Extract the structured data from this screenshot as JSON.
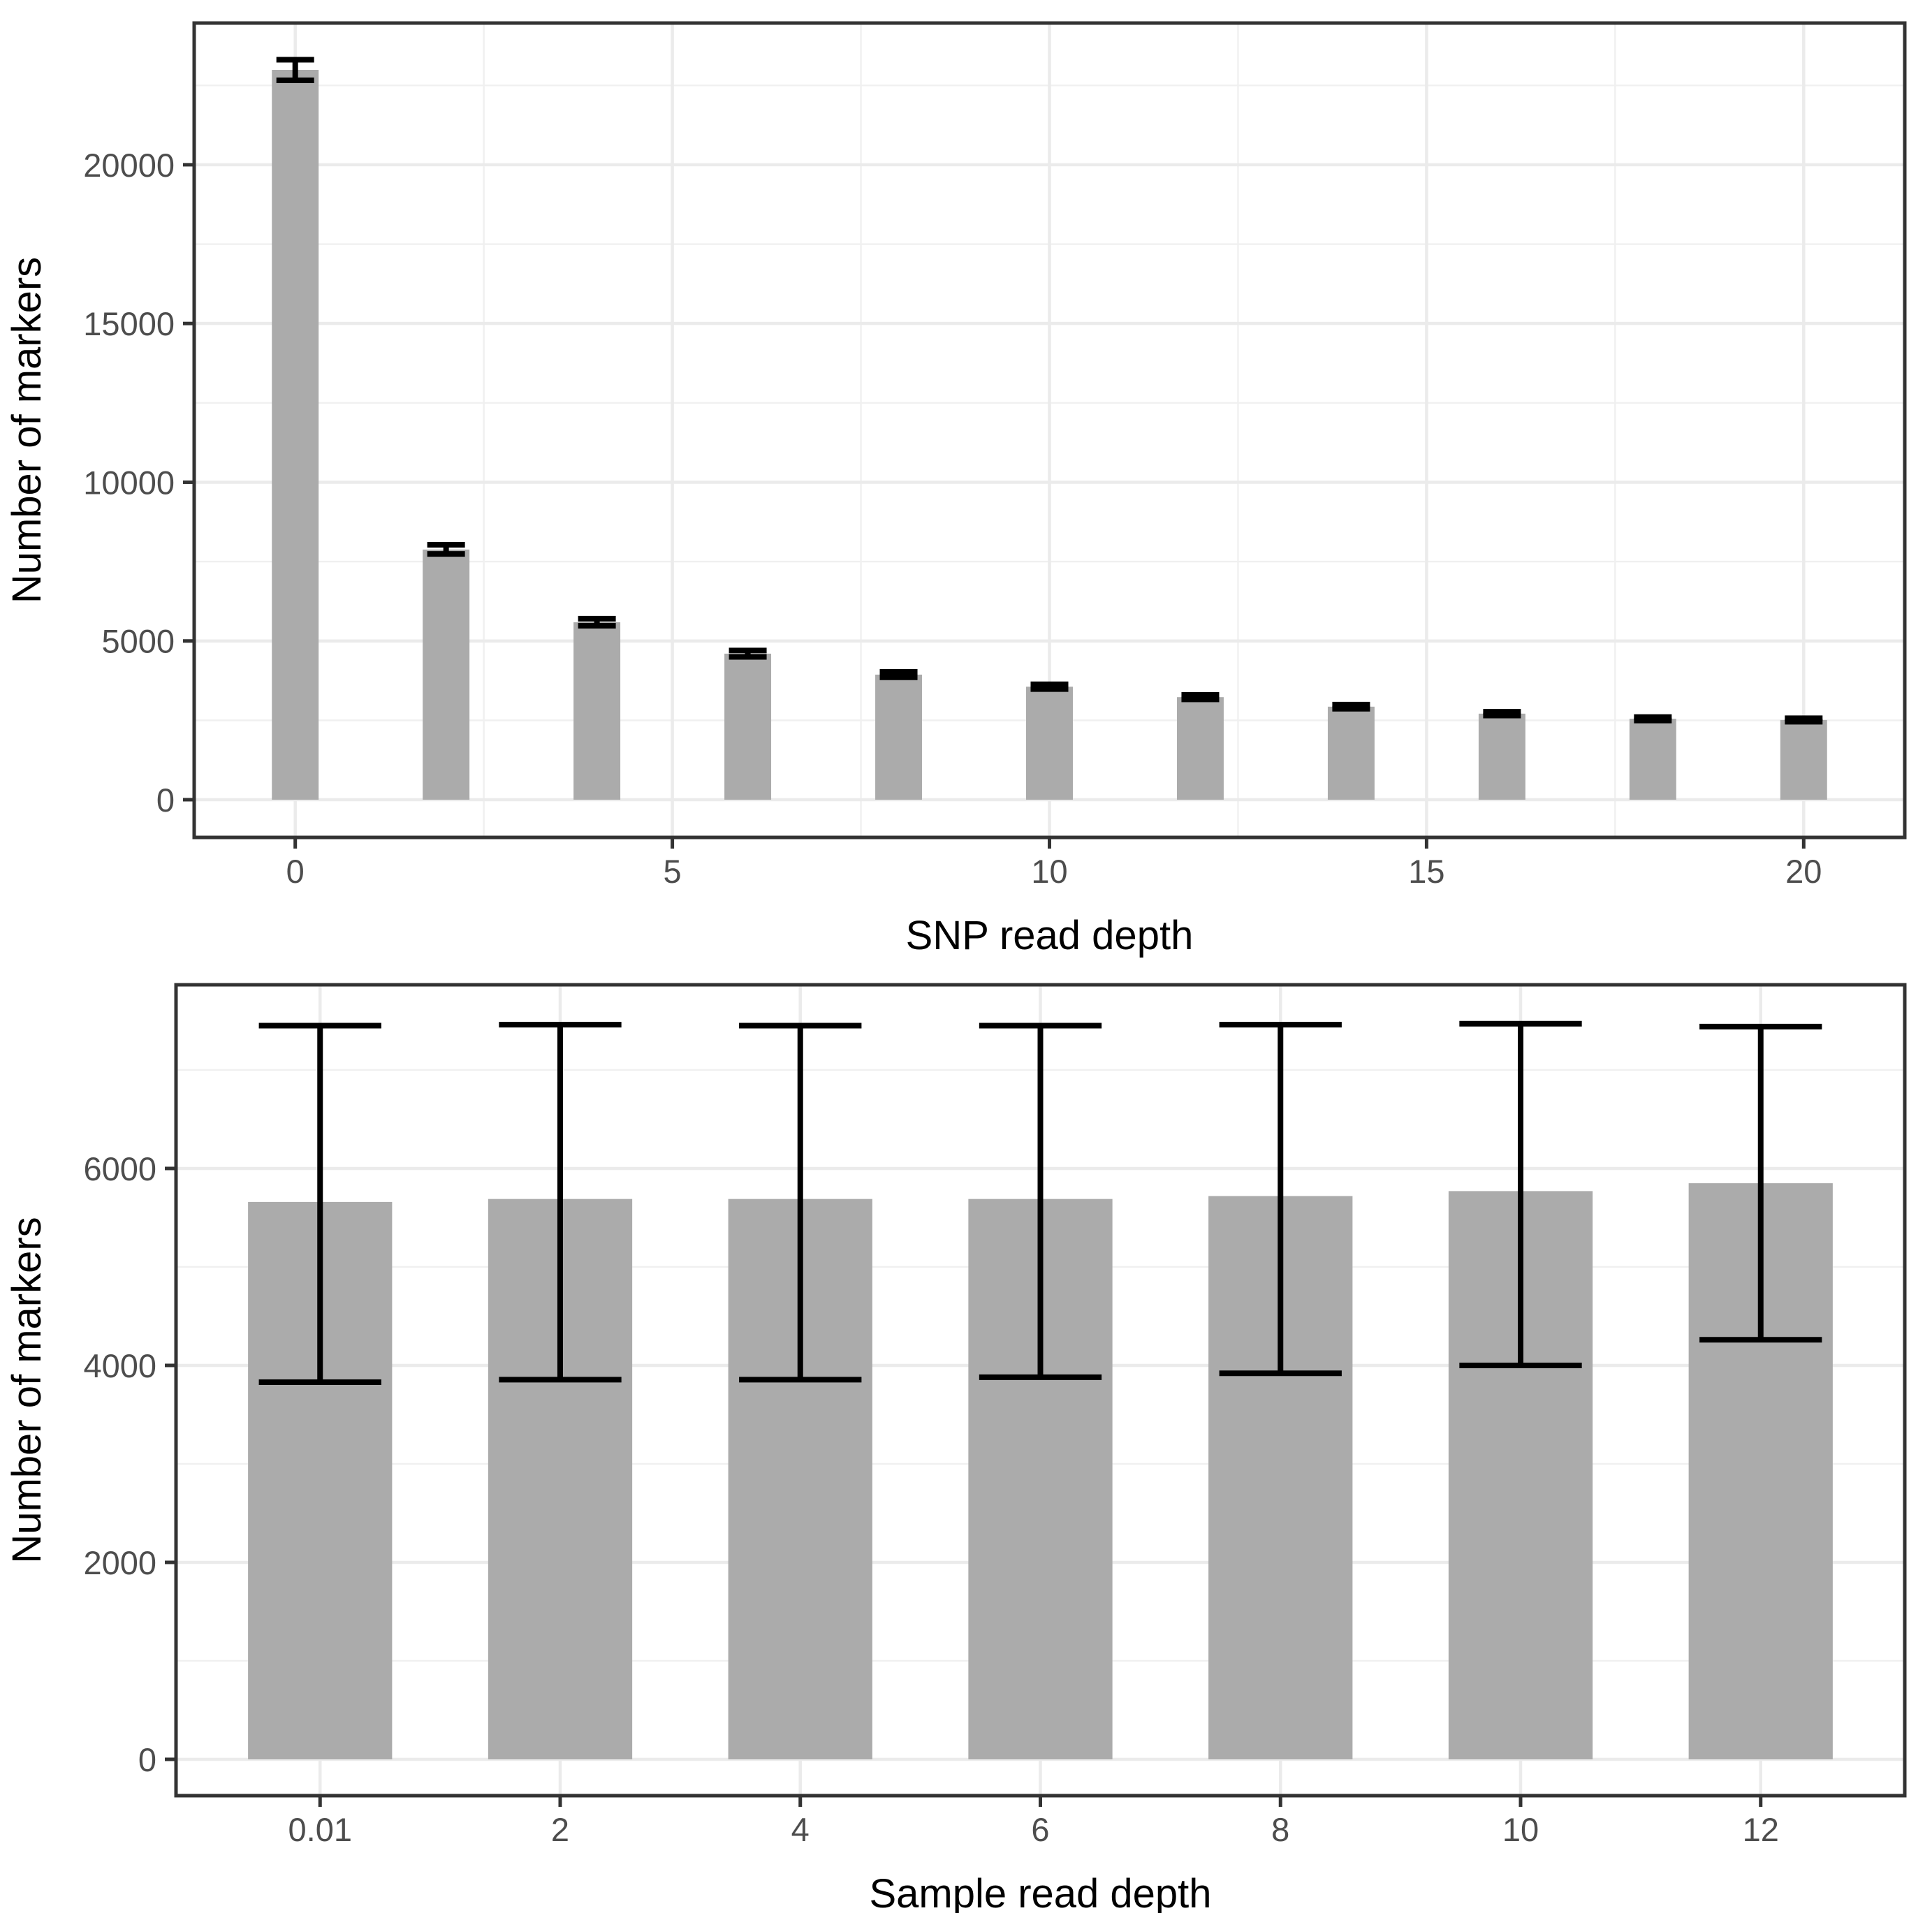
{
  "figure": {
    "background": "#FFFFFF",
    "description": "Two stacked bar charts with error bars"
  },
  "style": {
    "bar_fill": "#ABABAB",
    "error_color": "#000000",
    "grid_major_color": "#EBEBEB",
    "grid_minor_color": "#F0F0F0",
    "panel_border_color": "#333333",
    "tick_color": "#333333",
    "tick_label_color": "#4D4D4D",
    "axis_title_color": "#000000",
    "background": "#FFFFFF"
  },
  "chart_data": [
    {
      "type": "bar",
      "id": "snp-read-depth",
      "title": "",
      "xlabel": "SNP read depth",
      "ylabel": "Number of markers",
      "x_type": "continuous",
      "x": [
        0,
        2,
        4,
        6,
        8,
        10,
        12,
        14,
        16,
        18,
        20
      ],
      "values": [
        22990,
        7880,
        5590,
        4600,
        3940,
        3560,
        3230,
        2930,
        2710,
        2550,
        2510
      ],
      "error_low": [
        22660,
        7740,
        5480,
        4500,
        3855,
        3485,
        3160,
        2865,
        2650,
        2495,
        2455
      ],
      "error_high": [
        23310,
        8030,
        5700,
        4700,
        4025,
        3635,
        3300,
        2995,
        2770,
        2605,
        2565
      ],
      "x_ticks": [
        0,
        5,
        10,
        15,
        20
      ],
      "x_tick_labels": [
        "0",
        "5",
        "10",
        "15",
        "20"
      ],
      "x_minor_ticks": [
        2.5,
        7.5,
        12.5,
        17.5
      ],
      "y_ticks": [
        0,
        5000,
        10000,
        15000,
        20000
      ],
      "y_tick_labels": [
        "0",
        "5000",
        "10000",
        "15000",
        "20000"
      ],
      "y_minor_ticks": [
        2500,
        7500,
        12500,
        17500,
        22500
      ],
      "xlim": [
        -1.34,
        21.34
      ],
      "ylim": [
        -1188,
        24464
      ],
      "bar_width": 0.62,
      "cap_width": 0.5,
      "grid": true,
      "legend": "none"
    },
    {
      "type": "bar",
      "id": "sample-read-depth",
      "title": "",
      "xlabel": "Sample read depth",
      "ylabel": "Number of markers",
      "x_type": "categorical",
      "categories": [
        "0.01",
        "2",
        "4",
        "6",
        "8",
        "10",
        "12"
      ],
      "values": [
        5660,
        5690,
        5690,
        5690,
        5720,
        5770,
        5850
      ],
      "error_low": [
        3830,
        3855,
        3855,
        3880,
        3920,
        4000,
        4260
      ],
      "error_high": [
        7450,
        7460,
        7450,
        7450,
        7460,
        7470,
        7440
      ],
      "y_ticks": [
        0,
        2000,
        4000,
        6000
      ],
      "y_tick_labels": [
        "0",
        "2000",
        "4000",
        "6000"
      ],
      "y_minor_ticks": [
        1000,
        3000,
        5000,
        7000
      ],
      "xlim": [
        -0.6,
        6.6
      ],
      "ylim": [
        -369,
        7865
      ],
      "bar_width": 0.6,
      "cap_width": 0.51,
      "grid": true,
      "legend": "none"
    }
  ]
}
